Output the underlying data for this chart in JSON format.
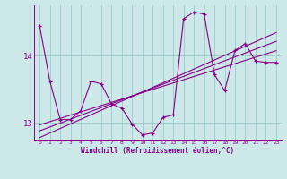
{
  "xlabel": "Windchill (Refroidissement éolien,°C)",
  "background_color": "#cce8e8",
  "line_color": "#880088",
  "grid_color": "#99cccc",
  "xlim": [
    -0.5,
    23.5
  ],
  "ylim": [
    12.75,
    14.75
  ],
  "yticks": [
    13,
    14
  ],
  "xticks": [
    0,
    1,
    2,
    3,
    4,
    5,
    6,
    7,
    8,
    9,
    10,
    11,
    12,
    13,
    14,
    15,
    16,
    17,
    18,
    19,
    20,
    21,
    22,
    23
  ],
  "series1": [
    [
      0,
      14.45
    ],
    [
      1,
      13.62
    ],
    [
      2,
      13.05
    ],
    [
      3,
      13.05
    ],
    [
      4,
      13.18
    ],
    [
      5,
      13.62
    ],
    [
      6,
      13.58
    ],
    [
      7,
      13.28
    ],
    [
      8,
      13.22
    ],
    [
      9,
      12.98
    ],
    [
      10,
      12.82
    ],
    [
      11,
      12.85
    ],
    [
      12,
      13.08
    ],
    [
      13,
      13.12
    ],
    [
      14,
      14.55
    ],
    [
      15,
      14.65
    ],
    [
      16,
      14.62
    ],
    [
      17,
      13.72
    ],
    [
      18,
      13.48
    ],
    [
      19,
      14.08
    ],
    [
      20,
      14.18
    ],
    [
      21,
      13.92
    ],
    [
      22,
      13.9
    ],
    [
      23,
      13.9
    ]
  ],
  "series2_x": [
    1,
    2,
    3,
    4,
    5,
    6,
    7,
    8,
    9,
    10,
    11,
    12,
    13,
    14,
    15,
    16,
    17,
    18,
    19,
    20,
    21,
    22,
    23
  ],
  "series2_slope": 0.048,
  "series2_intercept": 12.97,
  "series3_x": [
    1,
    2,
    3,
    4,
    5,
    6,
    7,
    8,
    9,
    10,
    11,
    12,
    13,
    14,
    15,
    16,
    17,
    18,
    19,
    20,
    21,
    22,
    23
  ],
  "series3_slope": 0.058,
  "series3_intercept": 12.88,
  "series4_x": [
    1,
    2,
    3,
    4,
    5,
    6,
    7,
    8,
    9,
    10,
    11,
    12,
    13,
    14,
    15,
    16,
    17,
    18,
    19,
    20,
    21,
    22,
    23
  ],
  "series4_slope": 0.068,
  "series4_intercept": 12.78
}
